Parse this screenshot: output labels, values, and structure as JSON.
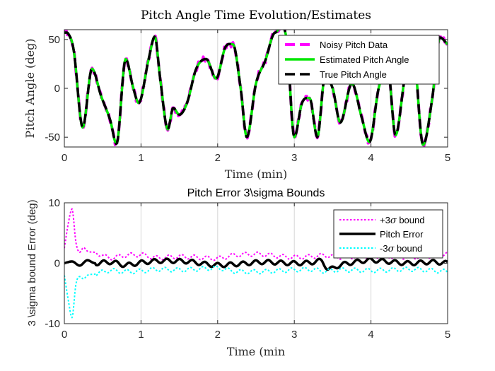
{
  "chart_data": [
    {
      "type": "line",
      "title": "Pitch Angle Time Evolution/Estimates",
      "xlabel": "Time (min)",
      "ylabel": "Pitch Angle (deg)",
      "xlim": [
        0,
        5
      ],
      "ylim": [
        -60,
        60
      ],
      "xticks": [
        "0",
        "1",
        "2",
        "3",
        "4",
        "5"
      ],
      "yticks": [
        "50",
        "0",
        "-50"
      ],
      "grid": "x-only",
      "legend_position": "top-right",
      "series": [
        {
          "name": "Noisy Pitch Data",
          "color": "#ff00ff",
          "style": "dashed",
          "noise": 3
        },
        {
          "name": "Estimated Pitch Angle",
          "color": "#00e600",
          "style": "solid",
          "noise": 0
        },
        {
          "name": "True Pitch Angle",
          "color": "#000000",
          "style": "dashed",
          "noise": 0
        }
      ],
      "x": [
        0,
        0.05,
        0.12,
        0.24,
        0.36,
        0.48,
        0.6,
        0.68,
        0.8,
        0.9,
        0.97,
        1.1,
        1.18,
        1.25,
        1.35,
        1.42,
        1.5,
        1.6,
        1.72,
        1.85,
        1.98,
        2.1,
        2.2,
        2.3,
        2.38,
        2.5,
        2.62,
        2.75,
        2.9,
        3.0,
        3.1,
        3.2,
        3.3,
        3.4,
        3.5,
        3.6,
        3.75,
        3.88,
        3.98,
        4.1,
        4.22,
        4.32,
        4.45,
        4.55,
        4.68,
        4.8,
        4.9,
        5.0
      ],
      "y": [
        57,
        56,
        40,
        -40,
        20,
        -8,
        -33,
        -57,
        30,
        0,
        -15,
        30,
        53,
        10,
        -42,
        -20,
        -27,
        -15,
        20,
        30,
        10,
        42,
        45,
        0,
        -50,
        5,
        28,
        57,
        50,
        -50,
        -15,
        -10,
        -50,
        12,
        0,
        -35,
        5,
        -30,
        -55,
        0,
        20,
        -48,
        15,
        37,
        -58,
        -10,
        52,
        45
      ]
    },
    {
      "type": "line",
      "title": "Pitch Error 3\\sigma Bounds",
      "xlabel": "Time (min",
      "ylabel": "3 \\sigma bound Error (deg)",
      "xlim": [
        0,
        5
      ],
      "ylim": [
        -10,
        10
      ],
      "xticks": [
        "0",
        "1",
        "2",
        "3",
        "4",
        "5"
      ],
      "yticks": [
        "10",
        "0",
        "-10"
      ],
      "grid": "x-only",
      "legend_position": "top-right",
      "series": [
        {
          "name": "+3σ bound",
          "legend_prefix": "+3",
          "legend_symbol": "σ",
          "legend_suffix": " bound",
          "color": "#ff00ff",
          "style": "dotted",
          "x": [
            0,
            0.05,
            0.1,
            0.15,
            0.2,
            0.25,
            0.3,
            0.4,
            0.6,
            0.8,
            1.0,
            1.2,
            1.5,
            2.0,
            2.2,
            2.5,
            3.0,
            3.2,
            3.4,
            3.6,
            4.0,
            4.5,
            4.8,
            5.0
          ],
          "y": [
            2.5,
            6.5,
            9.0,
            3.5,
            1.8,
            2.6,
            2.0,
            1.8,
            0.9,
            1.3,
            1.4,
            0.9,
            1.1,
            0.8,
            1.3,
            1.5,
            1.0,
            1.1,
            1.3,
            1.0,
            1.2,
            1.0,
            1.2,
            1.5
          ]
        },
        {
          "name": "Pitch Error",
          "legend_prefix": "Pitch Error",
          "legend_symbol": "",
          "legend_suffix": "",
          "color": "#000000",
          "style": "solid",
          "x": [
            0,
            0.1,
            0.2,
            0.3,
            0.4,
            0.6,
            0.8,
            1.0,
            1.3,
            1.6,
            2.0,
            2.3,
            2.6,
            3.0,
            3.2,
            3.35,
            3.45,
            3.6,
            3.8,
            4.0,
            4.2,
            4.5,
            4.8,
            5.0
          ],
          "y": [
            0.0,
            0.3,
            -0.4,
            0.5,
            0.0,
            0.2,
            -0.3,
            0.1,
            0.4,
            0.3,
            -0.3,
            -0.1,
            0.2,
            0.0,
            0.1,
            0.4,
            -1.0,
            -0.3,
            0.2,
            0.5,
            0.3,
            0.0,
            0.2,
            0.0
          ]
        },
        {
          "name": "-3σ bound",
          "legend_prefix": "-3",
          "legend_symbol": "σ",
          "legend_suffix": " bound",
          "color": "#00ffff",
          "style": "dotted",
          "x": [
            0,
            0.05,
            0.1,
            0.15,
            0.2,
            0.25,
            0.3,
            0.4,
            0.6,
            0.8,
            1.0,
            1.2,
            1.5,
            2.0,
            2.2,
            2.5,
            3.0,
            3.2,
            3.4,
            3.6,
            4.0,
            4.5,
            4.8,
            5.0
          ],
          "y": [
            -2.0,
            -6.0,
            -9.0,
            -3.5,
            -2.2,
            -2.6,
            -2.0,
            -1.8,
            -1.2,
            -1.4,
            -1.3,
            -1.0,
            -1.1,
            -0.8,
            -1.3,
            -1.4,
            -1.1,
            -1.0,
            -1.3,
            -1.1,
            -1.2,
            -1.0,
            -1.2,
            -1.4
          ]
        }
      ]
    }
  ]
}
